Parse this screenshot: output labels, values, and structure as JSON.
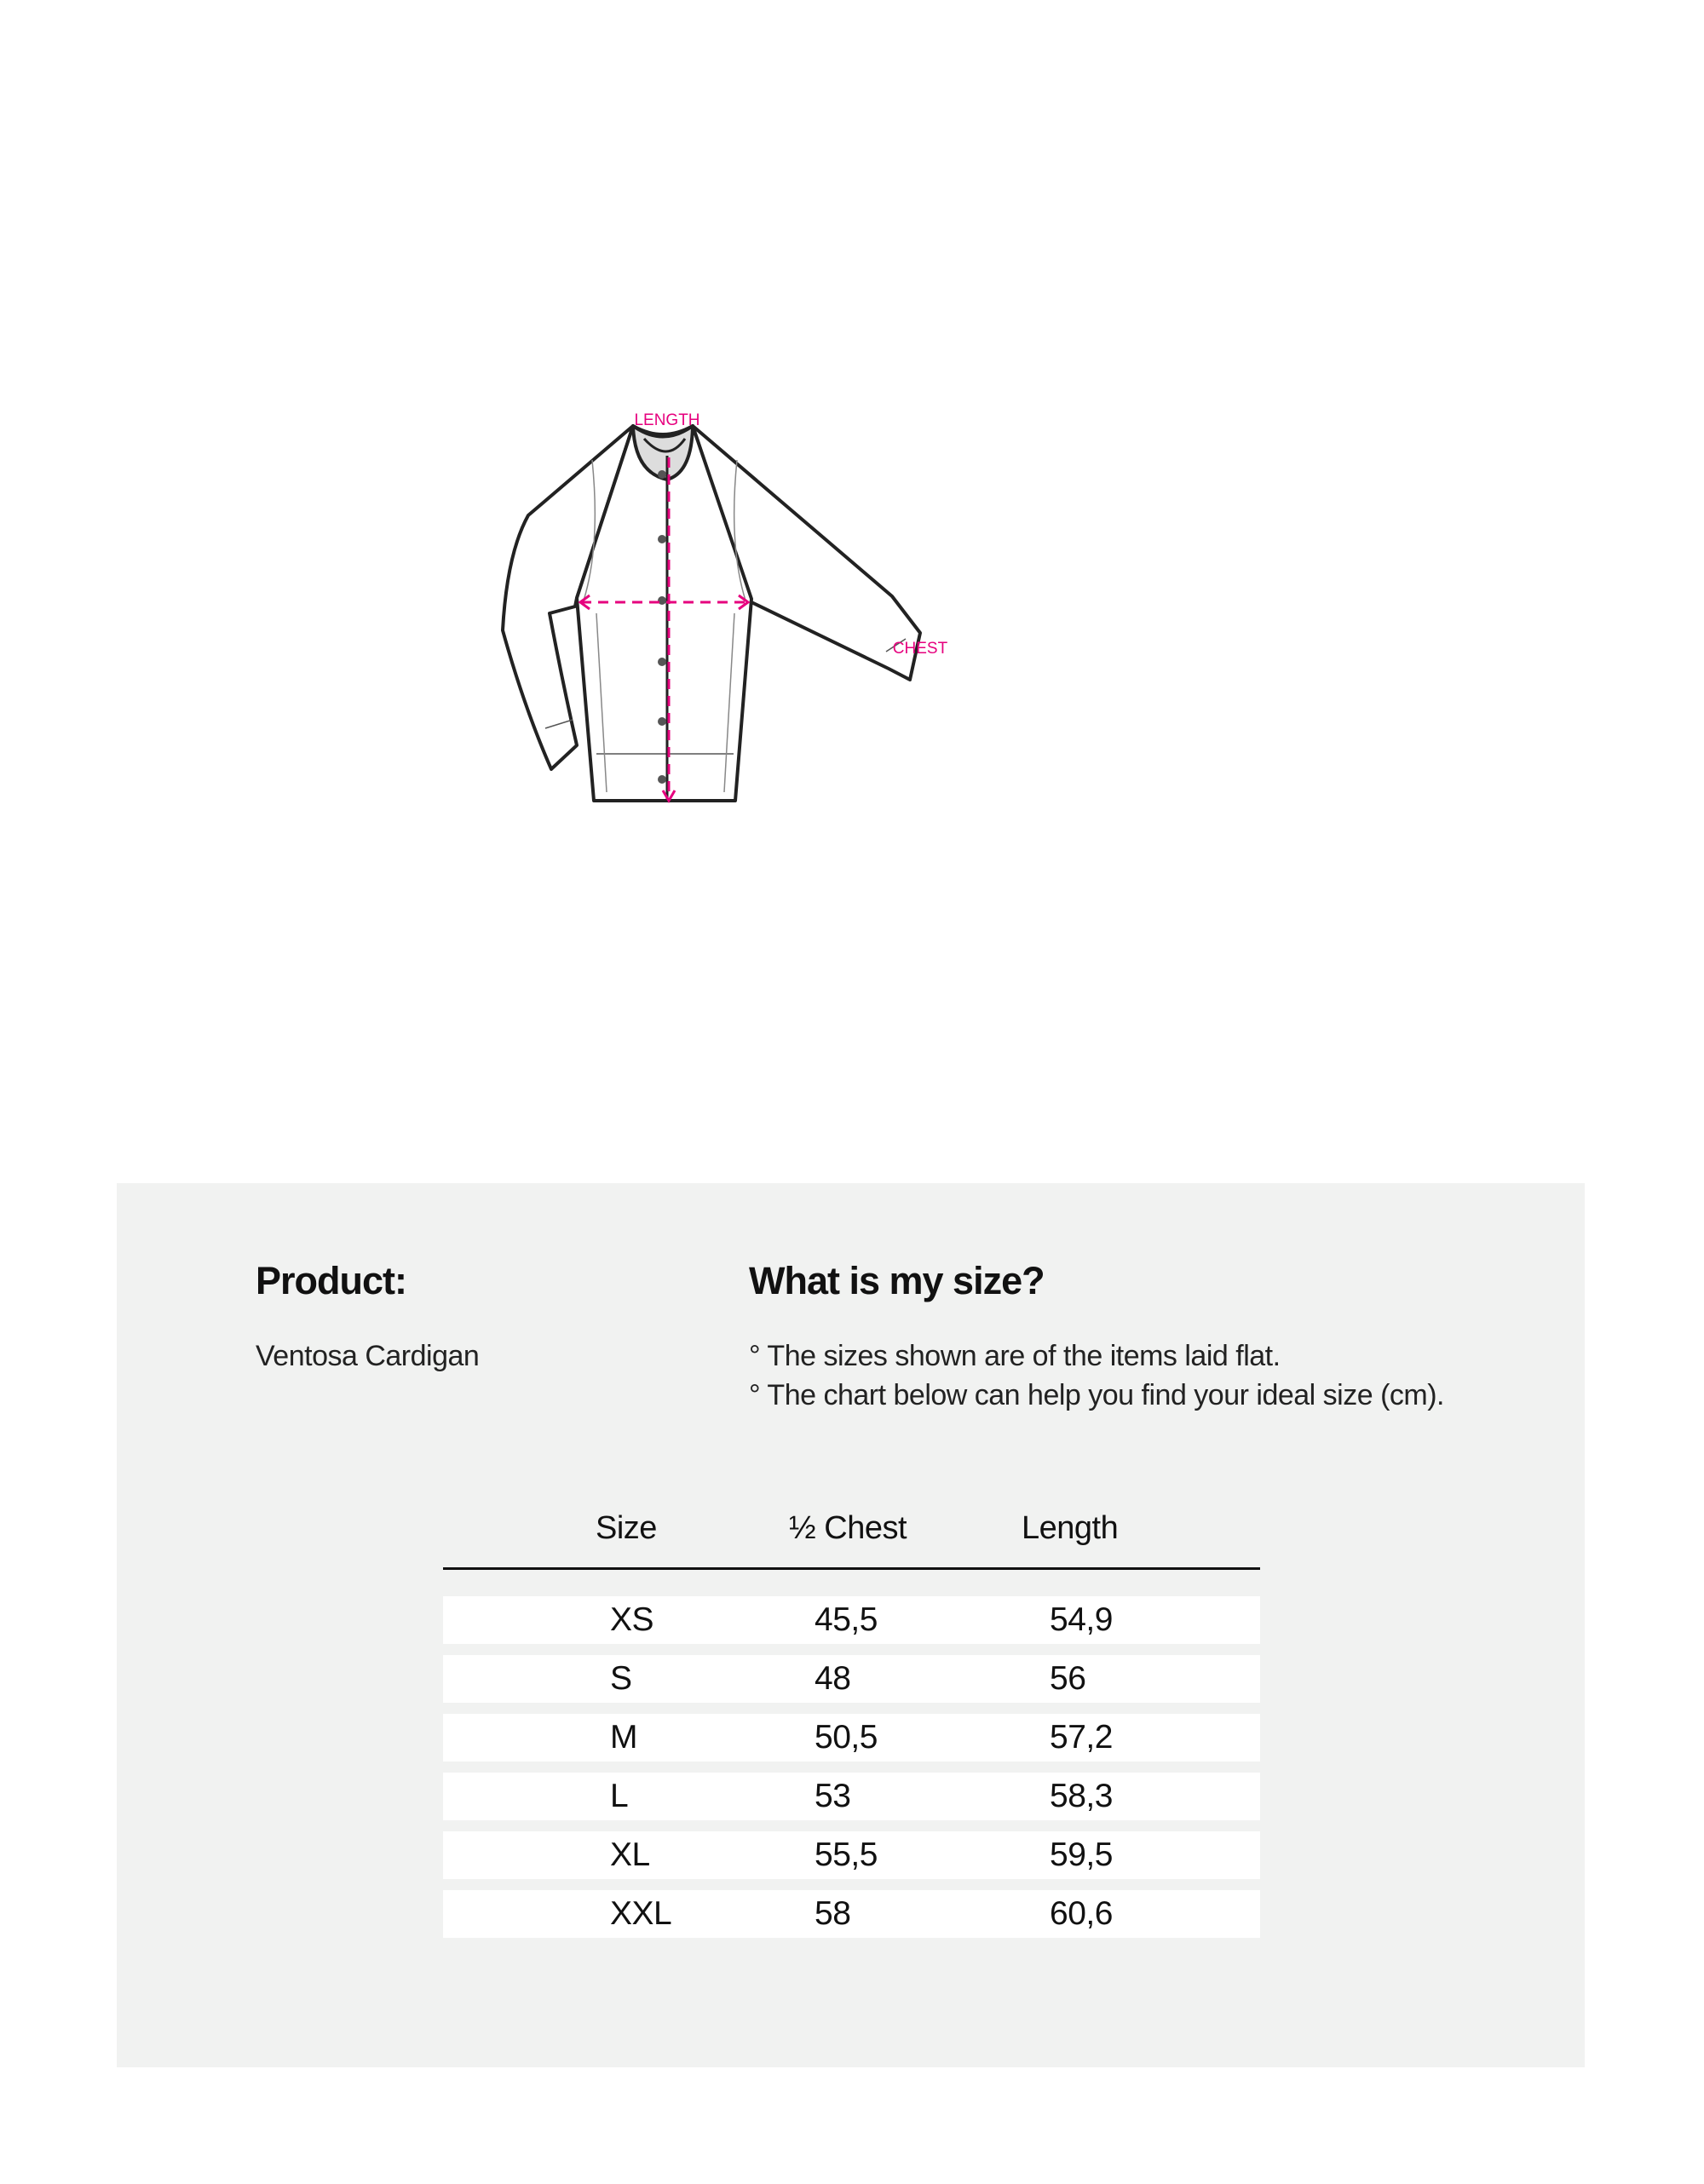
{
  "diagram": {
    "labels": {
      "length": "LENGTH",
      "chest": "CHEST"
    },
    "accent_color": "#e6007e"
  },
  "info": {
    "product_heading": "Product:",
    "product_name": "Ventosa Cardigan",
    "size_heading": "What is my size?",
    "notes": [
      "° The sizes shown are of the items laid flat.",
      "° The chart below can help you find your ideal size (cm)."
    ]
  },
  "table": {
    "headers": [
      "Size",
      "½ Chest",
      "Length"
    ],
    "rows": [
      [
        "XS",
        "45,5",
        "54,9"
      ],
      [
        "S",
        "48",
        "56"
      ],
      [
        "M",
        "50,5",
        "57,2"
      ],
      [
        "L",
        "53",
        "58,3"
      ],
      [
        "XL",
        "55,5",
        "59,5"
      ],
      [
        "XXL",
        "58",
        "60,6"
      ]
    ]
  }
}
